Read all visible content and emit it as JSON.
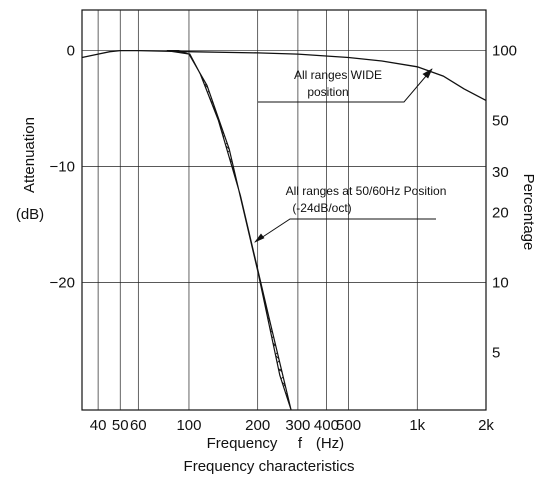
{
  "chart_data": {
    "type": "line",
    "title": "",
    "footer_caption": "Frequency characteristics",
    "xlabel": "Frequency",
    "xlabel_symbol": "f",
    "xlabel_unit": "(Hz)",
    "x_scale": "log",
    "xlim": [
      34,
      2000
    ],
    "x_ticks": [
      {
        "value": 40,
        "label": "40"
      },
      {
        "value": 50,
        "label": "50"
      },
      {
        "value": 60,
        "label": "60"
      },
      {
        "value": 100,
        "label": "100"
      },
      {
        "value": 200,
        "label": "200"
      },
      {
        "value": 300,
        "label": "300"
      },
      {
        "value": 400,
        "label": "400"
      },
      {
        "value": 500,
        "label": "500"
      },
      {
        "value": 1000,
        "label": "1k"
      },
      {
        "value": 2000,
        "label": "2k"
      }
    ],
    "ylabel_left": "Attenuation",
    "ylabel_left_unit": "(dB)",
    "ylim": [
      -31,
      3.5
    ],
    "y_ticks_left": [
      {
        "value": 0,
        "label": "0"
      },
      {
        "value": -10,
        "label": "−10"
      },
      {
        "value": -20,
        "label": "−20"
      }
    ],
    "ylabel_right": "Percentage",
    "y_ticks_right": [
      {
        "value": 100,
        "label": "100"
      },
      {
        "value": 50,
        "label": "50"
      },
      {
        "value": 30,
        "label": "30"
      },
      {
        "value": 20,
        "label": "20"
      },
      {
        "value": 10,
        "label": "10"
      },
      {
        "value": 5,
        "label": "5"
      }
    ],
    "grid": true,
    "series": [
      {
        "style": "solid-line",
        "x": [
          34,
          40,
          45,
          50,
          60,
          100,
          200,
          300,
          500,
          700,
          1000,
          1300,
          1600,
          2000
        ],
        "y": [
          -0.6,
          -0.3,
          -0.1,
          0,
          0,
          -0.1,
          -0.2,
          -0.3,
          -0.6,
          -0.9,
          -1.4,
          -2.2,
          -3.3,
          -4.3
        ]
      },
      {
        "style": "hatched-band",
        "x": [
          80,
          90,
          100,
          120,
          150,
          200,
          250
        ],
        "y_upper": [
          0,
          0,
          -0.3,
          -3,
          -8.5,
          -19,
          -28
        ],
        "y_lower": [
          0,
          -0.3,
          -2,
          -6,
          -12.5,
          -23,
          -31
        ]
      }
    ],
    "annotations": [
      {
        "lines": [
          "All ranges WIDE",
          "position"
        ]
      },
      {
        "lines": [
          "All ranges at 50/60Hz Position",
          "(-24dB/oct)"
        ]
      }
    ]
  }
}
